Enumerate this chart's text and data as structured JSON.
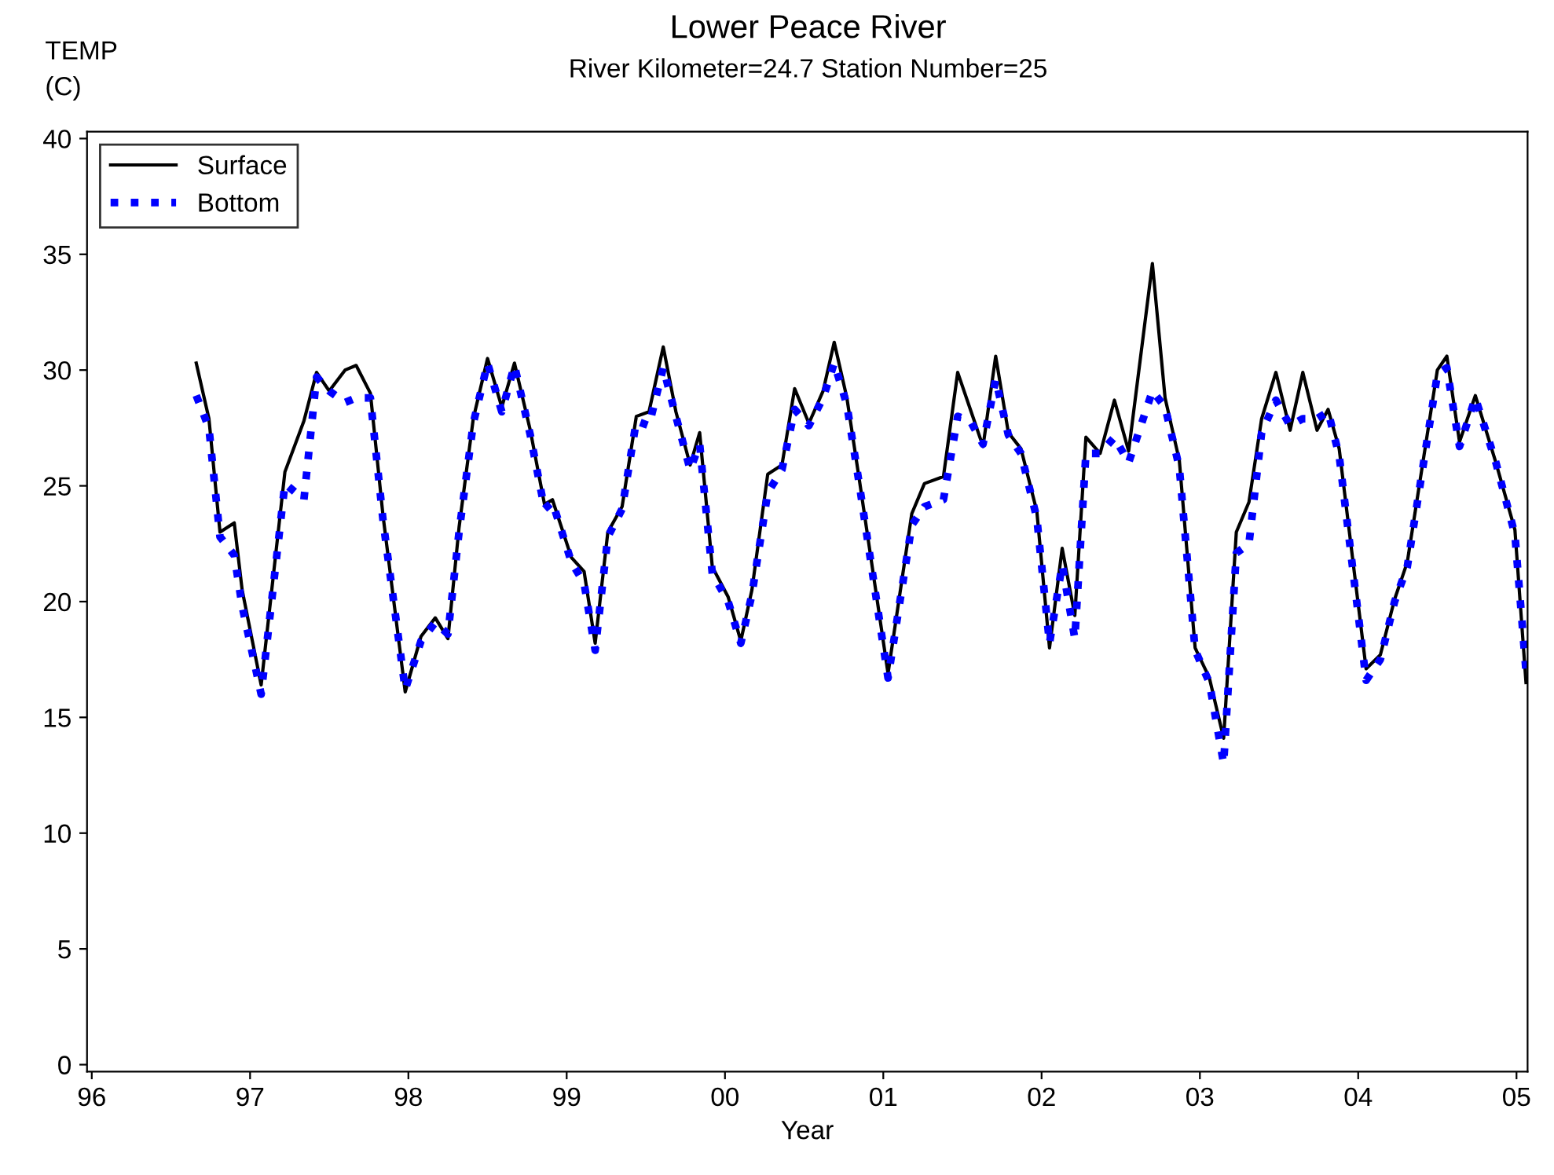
{
  "chart_data": {
    "type": "line",
    "title": "Lower Peace River",
    "subtitle": "River Kilometer=24.7 Station Number=25",
    "xlabel": "Year",
    "ylabel": "TEMP\n(C)",
    "x": [
      1996.66,
      1996.74,
      1996.81,
      1996.9,
      1996.95,
      1997.07,
      1997.22,
      1997.34,
      1997.42,
      1997.5,
      1997.6,
      1997.67,
      1997.76,
      1997.84,
      1997.98,
      1998.08,
      1998.17,
      1998.25,
      1998.32,
      1998.41,
      1998.5,
      1998.59,
      1998.67,
      1998.77,
      1998.86,
      1998.91,
      1999.03,
      1999.11,
      1999.18,
      1999.26,
      1999.35,
      1999.44,
      1999.52,
      1999.61,
      1999.69,
      1999.78,
      1999.84,
      1999.92,
      2000.02,
      2000.1,
      2000.17,
      2000.27,
      2000.36,
      2000.44,
      2000.53,
      2000.62,
      2000.69,
      2000.77,
      2000.85,
      2001.03,
      2001.18,
      2001.26,
      2001.38,
      2001.47,
      2001.55,
      2001.63,
      2001.71,
      2001.79,
      2001.87,
      2001.97,
      2002.05,
      2002.13,
      2002.21,
      2002.28,
      2002.37,
      2002.46,
      2002.55,
      2002.7,
      2002.78,
      2002.87,
      2002.97,
      2003.06,
      2003.15,
      2003.23,
      2003.31,
      2003.39,
      2003.48,
      2003.57,
      2003.65,
      2003.74,
      2003.81,
      2003.88,
      2004.05,
      2004.14,
      2004.23,
      2004.31,
      2004.5,
      2004.56,
      2004.64,
      2004.74,
      2004.87,
      2004.99,
      2005.06
    ],
    "series": [
      {
        "name": "Surface",
        "color": "#000000",
        "line_style": "solid",
        "values": [
          30.3,
          27.9,
          23.0,
          23.4,
          20.5,
          16.4,
          25.6,
          27.8,
          29.9,
          29.1,
          30.0,
          30.2,
          29.0,
          23.7,
          16.1,
          18.5,
          19.3,
          18.4,
          23.2,
          27.9,
          30.5,
          28.4,
          30.3,
          27.4,
          24.2,
          24.4,
          21.9,
          21.3,
          18.2,
          23.0,
          24.1,
          28.0,
          28.2,
          31.0,
          28.2,
          25.9,
          27.3,
          21.5,
          20.2,
          18.3,
          20.5,
          25.5,
          25.9,
          29.2,
          27.7,
          29.1,
          31.2,
          28.8,
          25.2,
          16.9,
          23.8,
          25.1,
          25.4,
          29.9,
          28.3,
          26.7,
          30.6,
          27.3,
          26.6,
          23.9,
          18.0,
          22.3,
          19.4,
          27.1,
          26.4,
          28.7,
          26.5,
          34.6,
          28.8,
          26.1,
          18.0,
          16.7,
          14.1,
          23.0,
          24.3,
          27.9,
          29.9,
          27.4,
          29.9,
          27.4,
          28.3,
          26.6,
          17.1,
          17.7,
          20.1,
          21.7,
          30.0,
          30.6,
          26.9,
          28.9,
          26.0,
          23.1,
          16.5
        ]
      },
      {
        "name": "Bottom",
        "color": "#0000ff",
        "line_style": "dotted",
        "values": [
          28.9,
          27.5,
          22.8,
          22.0,
          19.8,
          16.0,
          25.1,
          24.4,
          29.7,
          29.1,
          28.6,
          28.8,
          28.8,
          23.5,
          16.2,
          18.3,
          19.1,
          18.6,
          23.0,
          27.7,
          30.3,
          28.2,
          30.2,
          27.2,
          24.0,
          24.3,
          21.7,
          20.8,
          17.9,
          22.8,
          24.0,
          27.8,
          27.6,
          30.1,
          28.0,
          25.7,
          26.8,
          21.2,
          20.0,
          18.2,
          20.3,
          24.7,
          25.7,
          28.3,
          27.6,
          28.8,
          30.3,
          28.5,
          25.0,
          16.7,
          23.3,
          24.1,
          24.4,
          28.0,
          27.8,
          26.8,
          29.6,
          27.2,
          26.4,
          23.6,
          18.2,
          21.6,
          18.4,
          26.4,
          26.4,
          27.1,
          26.0,
          29.1,
          28.4,
          25.8,
          17.9,
          16.5,
          13.0,
          22.1,
          22.5,
          27.3,
          28.7,
          27.6,
          27.9,
          27.9,
          28.2,
          26.3,
          16.6,
          17.5,
          20.0,
          21.5,
          29.8,
          30.1,
          26.7,
          28.8,
          26.0,
          22.9,
          17.0
        ]
      }
    ],
    "xlim": [
      1995.97,
      2005.07
    ],
    "xticks": [
      {
        "value": 1996,
        "label": "96"
      },
      {
        "value": 1997,
        "label": "97"
      },
      {
        "value": 1998,
        "label": "98"
      },
      {
        "value": 1999,
        "label": "99"
      },
      {
        "value": 2000,
        "label": "00"
      },
      {
        "value": 2001,
        "label": "01"
      },
      {
        "value": 2002,
        "label": "02"
      },
      {
        "value": 2003,
        "label": "03"
      },
      {
        "value": 2004,
        "label": "04"
      },
      {
        "value": 2005,
        "label": "05"
      }
    ],
    "ylim": [
      -0.3,
      40.3
    ],
    "yticks": [
      0,
      5,
      10,
      15,
      20,
      25,
      30,
      35,
      40
    ],
    "grid": false,
    "legend": "top left",
    "marker": "none"
  }
}
